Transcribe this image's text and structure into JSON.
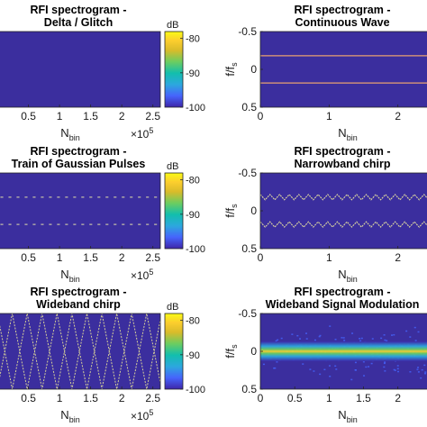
{
  "colors": {
    "background": "#3b2e9e",
    "signal": "#f5d45a",
    "colormap": [
      "#3e26a8",
      "#4664fc",
      "#2ca8de",
      "#12bead",
      "#6bcd60",
      "#d8bb2a",
      "#fcce2e",
      "#f9fb15"
    ]
  },
  "common": {
    "xlabel_main": "N",
    "xlabel_sub": "bin",
    "ylabel_main": "f/f",
    "ylabel_sub": "s",
    "exp_base": "×10",
    "exp_pow": "5",
    "cb_unit": "dB"
  },
  "chart_data": [
    {
      "id": "delta",
      "type": "heatmap",
      "title_line1": "RFI spectrogram -",
      "title_line2": "Delta / Glitch",
      "x_ticks": [
        "0.5",
        "1",
        "1.5",
        "2",
        "2.5"
      ],
      "x_tick_values": [
        0.5,
        1,
        1.5,
        2,
        2.5
      ],
      "xlim": [
        0,
        2.62
      ],
      "x_exponent": "5",
      "colorbar": {
        "unit": "dB",
        "ticks": [
          "-80",
          "-90",
          "-100"
        ],
        "tick_values": [
          -80,
          -90,
          -100
        ],
        "clim": [
          -100,
          -78
        ]
      },
      "signal": {
        "kind": "none"
      }
    },
    {
      "id": "cw",
      "type": "heatmap",
      "title_line1": "RFI spectrogram -",
      "title_line2": "Continuous Wave",
      "x_ticks": [
        "0",
        "1",
        "2"
      ],
      "x_tick_values": [
        0,
        1,
        2
      ],
      "xlim": [
        0,
        2.62
      ],
      "y_ticks": [
        "-0.5",
        "0",
        "0.5"
      ],
      "y_tick_values": [
        -0.5,
        0,
        0.5
      ],
      "ylim": [
        -0.5,
        0.5
      ],
      "signal": {
        "kind": "tones",
        "freqs": [
          -0.18,
          0.18
        ]
      }
    },
    {
      "id": "gaussian",
      "type": "heatmap",
      "title_line1": "RFI spectrogram -",
      "title_line2": "Train of Gaussian Pulses",
      "x_ticks": [
        "0.5",
        "1",
        "1.5",
        "2",
        "2.5"
      ],
      "x_tick_values": [
        0.5,
        1,
        1.5,
        2,
        2.5
      ],
      "xlim": [
        0,
        2.62
      ],
      "x_exponent": "5",
      "colorbar": {
        "unit": "dB",
        "ticks": [
          "-80",
          "-90",
          "-100"
        ],
        "tick_values": [
          -80,
          -90,
          -100
        ],
        "clim": [
          -100,
          -78
        ]
      },
      "signal": {
        "kind": "dashes",
        "freqs": [
          -0.18,
          0.18
        ],
        "period": 0.13,
        "duty": 0.35
      }
    },
    {
      "id": "nbchirp",
      "type": "heatmap",
      "title_line1": "RFI spectrogram -",
      "title_line2": "Narrowband chirp",
      "x_ticks": [
        "0",
        "1",
        "2"
      ],
      "x_tick_values": [
        0,
        1,
        2
      ],
      "xlim": [
        0,
        2.62
      ],
      "y_ticks": [
        "-0.5",
        "0",
        "0.5"
      ],
      "y_tick_values": [
        -0.5,
        0,
        0.5
      ],
      "ylim": [
        -0.5,
        0.5
      ],
      "signal": {
        "kind": "zigzag",
        "centers": [
          -0.18,
          0.18
        ],
        "amplitude": 0.035,
        "period": 0.14
      }
    },
    {
      "id": "wbchirp",
      "type": "heatmap",
      "title_line1": "RFI spectrogram -",
      "title_line2": "Wideband chirp",
      "x_ticks": [
        "0.5",
        "1",
        "1.5",
        "2",
        "2.5"
      ],
      "x_tick_values": [
        0.5,
        1,
        1.5,
        2,
        2.5
      ],
      "xlim": [
        0,
        2.62
      ],
      "x_exponent": "5",
      "colorbar": {
        "unit": "dB",
        "ticks": [
          "-80",
          "-90",
          "-100"
        ],
        "tick_values": [
          -80,
          -90,
          -100
        ],
        "clim": [
          -100,
          -78
        ]
      },
      "signal": {
        "kind": "wide_zigzag",
        "period": 0.48
      }
    },
    {
      "id": "wbmod",
      "type": "heatmap",
      "title_line1": "RFI spectrogram -",
      "title_line2": "Wideband Signal Modulation",
      "x_ticks": [
        "0",
        "0.5",
        "1",
        "1.5",
        "2"
      ],
      "x_tick_values": [
        0,
        0.5,
        1,
        1.5,
        2
      ],
      "xlim": [
        0,
        2.62
      ],
      "y_ticks": [
        "-0.5",
        "0",
        "0.5"
      ],
      "y_tick_values": [
        -0.5,
        0,
        0.5
      ],
      "ylim": [
        -0.5,
        0.5
      ],
      "signal": {
        "kind": "band",
        "center": 0,
        "width": 0.12
      }
    }
  ]
}
